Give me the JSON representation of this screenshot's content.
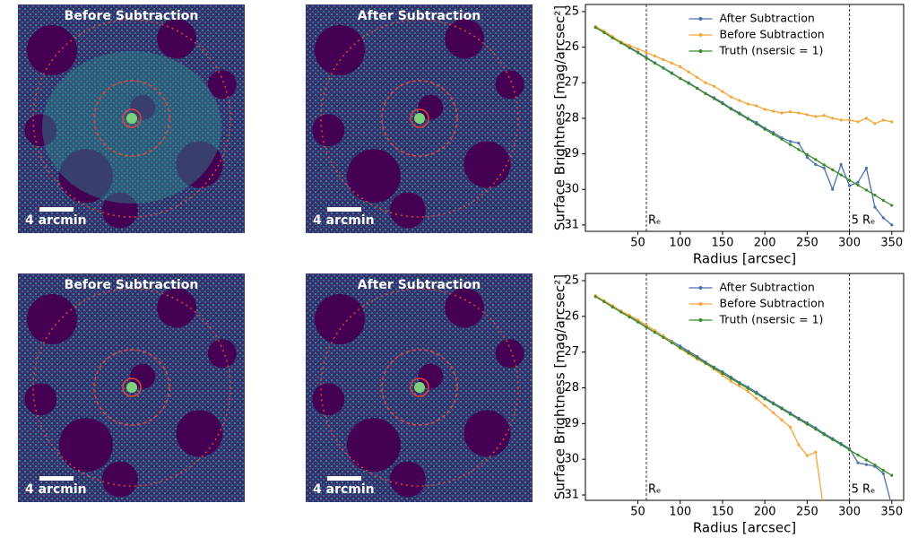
{
  "panels": [
    {
      "title": "Before Subtraction",
      "scale_label": "4 arcmin"
    },
    {
      "title": "After Subtraction",
      "scale_label": "4 arcmin"
    },
    {
      "title": "Before Subtraction",
      "scale_label": "4 arcmin"
    },
    {
      "title": "After Subtraction",
      "scale_label": "4 arcmin"
    }
  ],
  "chart_data": [
    {
      "type": "line",
      "x_label": "Radius [arcsec]",
      "y_label": "Surface Brightness [mag/arcsec²]",
      "xlim": [
        -12,
        364
      ],
      "ylim": [
        24.8,
        31.18
      ],
      "y_inverted": true,
      "xticks": [
        50,
        100,
        150,
        200,
        250,
        300,
        350
      ],
      "yticks": [
        25,
        26,
        27,
        28,
        29,
        30,
        31
      ],
      "legend": "upper center",
      "vlines": [
        {
          "x": 60,
          "label": "Rₑ"
        },
        {
          "x": 300,
          "label": "5 Rₑ"
        }
      ],
      "x": [
        0,
        10,
        20,
        30,
        40,
        50,
        60,
        70,
        80,
        90,
        100,
        110,
        120,
        130,
        140,
        150,
        160,
        170,
        180,
        190,
        200,
        210,
        220,
        230,
        240,
        250,
        260,
        270,
        280,
        290,
        300,
        310,
        320,
        330,
        340,
        350
      ],
      "series": [
        {
          "name": "After Subtraction",
          "color": "#4a72b0",
          "values": [
            25.43,
            25.58,
            25.72,
            25.86,
            26.0,
            26.14,
            26.29,
            26.44,
            26.58,
            26.72,
            26.88,
            27.0,
            27.15,
            27.3,
            27.42,
            27.56,
            27.72,
            27.85,
            28.0,
            28.12,
            28.28,
            28.4,
            28.55,
            28.65,
            28.7,
            29.1,
            29.3,
            29.4,
            30.0,
            29.3,
            29.9,
            29.8,
            29.4,
            30.5,
            30.8,
            31.0
          ]
        },
        {
          "name": "Before Subtraction",
          "color": "#f5a53a",
          "values": [
            25.42,
            25.55,
            25.7,
            25.85,
            25.95,
            26.05,
            26.15,
            26.25,
            26.35,
            26.45,
            26.55,
            26.7,
            26.85,
            27.0,
            27.1,
            27.25,
            27.4,
            27.5,
            27.6,
            27.65,
            27.75,
            27.8,
            27.85,
            27.82,
            27.85,
            27.9,
            27.95,
            27.92,
            28.0,
            28.05,
            28.05,
            28.1,
            28.0,
            28.15,
            28.05,
            28.1
          ]
        },
        {
          "name": "Truth (nsersic = 1)",
          "color": "#3a8a2a",
          "values": [
            25.45,
            25.59,
            25.74,
            25.88,
            26.02,
            26.16,
            26.31,
            26.45,
            26.59,
            26.74,
            26.88,
            27.02,
            27.16,
            27.31,
            27.45,
            27.59,
            27.74,
            27.88,
            28.02,
            28.16,
            28.31,
            28.45,
            28.59,
            28.74,
            28.88,
            29.02,
            29.16,
            29.31,
            29.45,
            29.59,
            29.74,
            29.88,
            30.02,
            30.16,
            30.31,
            30.45
          ]
        }
      ]
    },
    {
      "type": "line",
      "x_label": "Radius [arcsec]",
      "y_label": "Surface Brightness [mag/arcsec²]",
      "xlim": [
        -12,
        364
      ],
      "ylim": [
        24.8,
        31.15
      ],
      "y_inverted": true,
      "xticks": [
        50,
        100,
        150,
        200,
        250,
        300,
        350
      ],
      "yticks": [
        25,
        26,
        27,
        28,
        29,
        30,
        31
      ],
      "legend": "upper center",
      "vlines": [
        {
          "x": 60,
          "label": "Rₑ"
        },
        {
          "x": 300,
          "label": "5 Rₑ"
        }
      ],
      "x": [
        0,
        10,
        20,
        30,
        40,
        50,
        60,
        70,
        80,
        90,
        100,
        110,
        120,
        130,
        140,
        150,
        160,
        170,
        180,
        190,
        200,
        210,
        220,
        230,
        240,
        250,
        260,
        270,
        280,
        290,
        300,
        310,
        320,
        330,
        340,
        350
      ],
      "series": [
        {
          "name": "After Subtraction",
          "color": "#4a72b0",
          "values": [
            25.43,
            25.57,
            25.72,
            25.86,
            25.98,
            26.12,
            26.26,
            26.4,
            26.55,
            26.7,
            26.83,
            26.98,
            27.12,
            27.28,
            27.42,
            27.55,
            27.7,
            27.85,
            27.98,
            28.12,
            28.28,
            28.42,
            28.56,
            28.7,
            28.85,
            28.98,
            29.12,
            29.28,
            29.42,
            29.56,
            29.7,
            30.1,
            30.15,
            30.2,
            30.4,
            31.3
          ]
        },
        {
          "name": "Before Subtraction",
          "color": "#f5a53a",
          "values": [
            25.42,
            25.56,
            25.7,
            25.85,
            25.97,
            26.1,
            26.25,
            26.4,
            26.55,
            26.72,
            26.9,
            27.05,
            27.2,
            27.32,
            27.48,
            27.65,
            27.82,
            27.95,
            28.1,
            28.3,
            28.5,
            28.7,
            28.9,
            29.1,
            29.6,
            29.9,
            29.8,
            31.5,
            null,
            null,
            null,
            null,
            null,
            null,
            null,
            null
          ]
        },
        {
          "name": "Truth (nsersic = 1)",
          "color": "#3a8a2a",
          "values": [
            25.45,
            25.59,
            25.74,
            25.88,
            26.02,
            26.16,
            26.31,
            26.45,
            26.59,
            26.74,
            26.88,
            27.02,
            27.16,
            27.31,
            27.45,
            27.59,
            27.74,
            27.88,
            28.02,
            28.16,
            28.31,
            28.45,
            28.59,
            28.74,
            28.88,
            29.02,
            29.16,
            29.31,
            29.45,
            29.59,
            29.74,
            29.88,
            30.02,
            30.16,
            30.31,
            30.45
          ]
        }
      ]
    }
  ]
}
